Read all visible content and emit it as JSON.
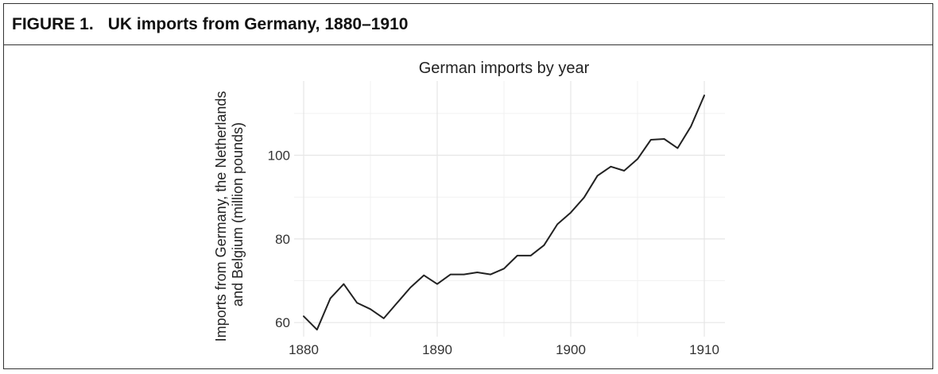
{
  "figure": {
    "label": "FIGURE 1.",
    "title": "UK imports from Germany, 1880–1910"
  },
  "chart_data": {
    "type": "line",
    "title": "German imports by year",
    "xlabel": "",
    "ylabel": [
      "Imports from Germany, the Netherlands",
      "and Belgium (million pounds)"
    ],
    "xlim": [
      1880,
      1910
    ],
    "ylim": [
      57,
      117
    ],
    "x_ticks": [
      1880,
      1890,
      1900,
      1910
    ],
    "y_ticks": [
      60,
      80,
      100
    ],
    "grid": true,
    "legend": "none",
    "series": [
      {
        "color": "#222222",
        "x": [
          1880,
          1881,
          1882,
          1883,
          1884,
          1885,
          1886,
          1887,
          1888,
          1889,
          1890,
          1891,
          1892,
          1893,
          1894,
          1895,
          1896,
          1897,
          1898,
          1899,
          1900,
          1901,
          1902,
          1903,
          1904,
          1905,
          1906,
          1907,
          1908,
          1909,
          1910
        ],
        "values": [
          61.5,
          58.3,
          65.8,
          69.2,
          64.7,
          63.2,
          61.0,
          64.7,
          68.4,
          71.3,
          69.2,
          71.5,
          71.5,
          72.0,
          71.5,
          72.9,
          76.0,
          76.0,
          78.5,
          83.5,
          86.3,
          89.9,
          95.1,
          97.3,
          96.3,
          99.1,
          103.7,
          103.9,
          101.7,
          106.9,
          114.3
        ]
      }
    ]
  }
}
